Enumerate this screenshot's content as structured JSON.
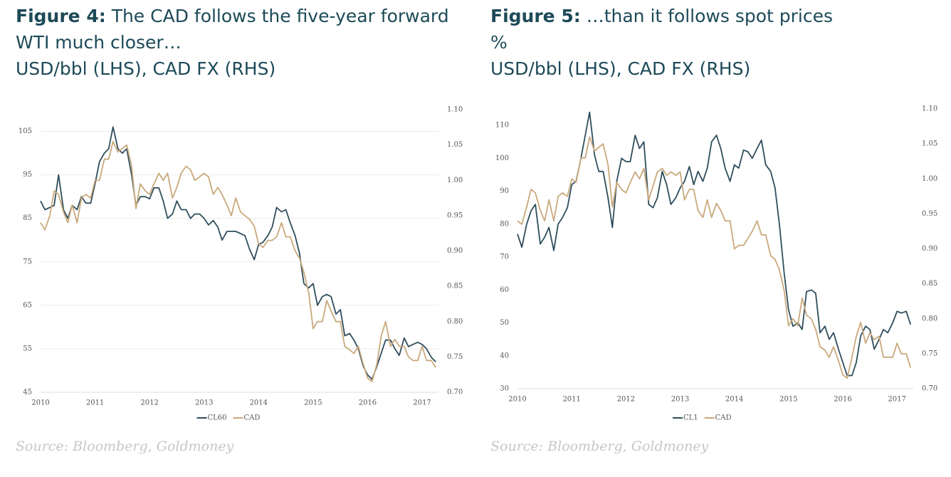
{
  "chart_data": [
    {
      "type": "line",
      "figure_label": "Figure 4:",
      "title": "The CAD follows the five-year forward WTI much closer…",
      "subtitle": "USD/bbl (LHS), CAD FX (RHS)",
      "source": "Source: Bloomberg, Goldmoney",
      "x": [
        2010,
        2010.08,
        2010.17,
        2010.25,
        2010.33,
        2010.42,
        2010.5,
        2010.58,
        2010.67,
        2010.75,
        2010.83,
        2010.92,
        2011,
        2011.08,
        2011.17,
        2011.25,
        2011.33,
        2011.42,
        2011.5,
        2011.58,
        2011.67,
        2011.75,
        2011.83,
        2011.92,
        2012,
        2012.08,
        2012.17,
        2012.25,
        2012.33,
        2012.42,
        2012.5,
        2012.58,
        2012.67,
        2012.75,
        2012.83,
        2012.92,
        2013,
        2013.08,
        2013.17,
        2013.25,
        2013.33,
        2013.42,
        2013.5,
        2013.58,
        2013.67,
        2013.75,
        2013.83,
        2013.92,
        2014,
        2014.08,
        2014.17,
        2014.25,
        2014.33,
        2014.42,
        2014.5,
        2014.58,
        2014.67,
        2014.75,
        2014.83,
        2014.92,
        2015,
        2015.08,
        2015.17,
        2015.25,
        2015.33,
        2015.42,
        2015.5,
        2015.58,
        2015.67,
        2015.75,
        2015.83,
        2015.92,
        2016,
        2016.08,
        2016.17,
        2016.25,
        2016.33,
        2016.42,
        2016.5,
        2016.58,
        2016.67,
        2016.75,
        2016.83,
        2016.92,
        2017,
        2017.08,
        2017.17,
        2017.25
      ],
      "xlim": [
        2010,
        2017.3
      ],
      "xticks": [
        2010,
        2011,
        2012,
        2013,
        2014,
        2015,
        2016,
        2017
      ],
      "ylim": [
        45,
        110
      ],
      "yticks": [
        45,
        55,
        65,
        75,
        85,
        95,
        105
      ],
      "y2lim": [
        0.7,
        1.1
      ],
      "y2ticks": [
        {
          "value": 0.7,
          "label": "0.70"
        },
        0.75,
        {
          "value": 0.8,
          "label": "0.80"
        },
        0.85,
        {
          "value": 0.9,
          "label": "0.90"
        },
        0.95,
        {
          "value": 1.0,
          "label": "1.00"
        },
        1.05,
        {
          "value": 1.1,
          "label": "1.10"
        }
      ],
      "grid": true,
      "series": [
        {
          "name": "CL60",
          "color": "#2f4d5c",
          "values": [
            89,
            87,
            87.5,
            88,
            95,
            87,
            85,
            88,
            87,
            90,
            88.5,
            88.5,
            93,
            98,
            100,
            101,
            106,
            101,
            100,
            101,
            95,
            88,
            90,
            90,
            89.5,
            92,
            92,
            89,
            85,
            86,
            89,
            87,
            87,
            85,
            86,
            86,
            85,
            83.5,
            84.5,
            83,
            80,
            82,
            82,
            82,
            81.5,
            81,
            78,
            75.5,
            79,
            79.5,
            81,
            83,
            87.5,
            86.5,
            87,
            84,
            81,
            77,
            70,
            69,
            70,
            65,
            67,
            67.5,
            67,
            63,
            64,
            58,
            58.5,
            57,
            55,
            51,
            49,
            48,
            51,
            54,
            57,
            57,
            55,
            53.5,
            57.5,
            55.5,
            56,
            56.5,
            56,
            55,
            53,
            52
          ]
        },
        {
          "name": "CAD",
          "color": "#c9a97c",
          "axis": "y2",
          "values": [
            0.94,
            0.93,
            0.95,
            0.985,
            0.98,
            0.955,
            0.94,
            0.965,
            0.94,
            0.975,
            0.98,
            0.975,
            1.0,
            1.0,
            1.03,
            1.03,
            1.055,
            1.04,
            1.045,
            1.05,
            1.02,
            0.96,
            0.995,
            0.985,
            0.98,
            0.995,
            1.01,
            1.0,
            1.01,
            0.975,
            0.99,
            1.01,
            1.02,
            1.015,
            1.0,
            1.005,
            1.01,
            1.005,
            0.98,
            0.99,
            0.98,
            0.965,
            0.95,
            0.975,
            0.955,
            0.95,
            0.945,
            0.935,
            0.91,
            0.905,
            0.915,
            0.915,
            0.92,
            0.94,
            0.92,
            0.92,
            0.9,
            0.89,
            0.87,
            0.84,
            0.79,
            0.8,
            0.8,
            0.83,
            0.815,
            0.8,
            0.8,
            0.765,
            0.76,
            0.755,
            0.765,
            0.74,
            0.72,
            0.715,
            0.74,
            0.78,
            0.8,
            0.765,
            0.775,
            0.765,
            0.765,
            0.75,
            0.745,
            0.745,
            0.765,
            0.745,
            0.745,
            0.735
          ]
        }
      ]
    },
    {
      "type": "line",
      "figure_label": "Figure 5:",
      "title": "…than it follows spot prices",
      "unit": "%",
      "subtitle": "USD/bbl (LHS), CAD FX (RHS)",
      "source": "Source: Bloomberg, Goldmoney",
      "x": [
        2010,
        2010.08,
        2010.17,
        2010.25,
        2010.33,
        2010.42,
        2010.5,
        2010.58,
        2010.67,
        2010.75,
        2010.83,
        2010.92,
        2011,
        2011.08,
        2011.17,
        2011.25,
        2011.33,
        2011.42,
        2011.5,
        2011.58,
        2011.67,
        2011.75,
        2011.83,
        2011.92,
        2012,
        2012.08,
        2012.17,
        2012.25,
        2012.33,
        2012.42,
        2012.5,
        2012.58,
        2012.67,
        2012.75,
        2012.83,
        2012.92,
        2013,
        2013.08,
        2013.17,
        2013.25,
        2013.33,
        2013.42,
        2013.5,
        2013.58,
        2013.67,
        2013.75,
        2013.83,
        2013.92,
        2014,
        2014.08,
        2014.17,
        2014.25,
        2014.33,
        2014.42,
        2014.5,
        2014.58,
        2014.67,
        2014.75,
        2014.83,
        2014.92,
        2015,
        2015.08,
        2015.17,
        2015.25,
        2015.33,
        2015.42,
        2015.5,
        2015.58,
        2015.67,
        2015.75,
        2015.83,
        2015.92,
        2016,
        2016.08,
        2016.17,
        2016.25,
        2016.33,
        2016.42,
        2016.5,
        2016.58,
        2016.67,
        2016.75,
        2016.83,
        2016.92,
        2017,
        2017.08,
        2017.17,
        2017.25
      ],
      "xlim": [
        2010,
        2017.3
      ],
      "xticks": [
        2010,
        2011,
        2012,
        2013,
        2014,
        2015,
        2016,
        2017
      ],
      "ylim": [
        30,
        115
      ],
      "yticks": [
        30,
        40,
        50,
        60,
        70,
        80,
        90,
        100,
        110
      ],
      "y2lim": [
        0.7,
        1.1
      ],
      "y2ticks": [
        {
          "value": 0.7,
          "label": "0.70"
        },
        0.75,
        {
          "value": 0.8,
          "label": "0.80"
        },
        0.85,
        {
          "value": 0.9,
          "label": "0.90"
        },
        0.95,
        {
          "value": 1.0,
          "label": "1.00"
        },
        1.05,
        {
          "value": 1.1,
          "label": "1.10"
        }
      ],
      "grid": false,
      "series": [
        {
          "name": "CL1",
          "color": "#2f4d5c",
          "values": [
            77,
            73,
            80,
            84,
            86,
            74,
            76,
            79,
            72,
            80,
            82,
            85,
            92,
            93,
            100,
            107,
            114,
            101,
            96,
            96,
            88,
            79,
            93,
            100,
            99,
            99,
            107,
            103,
            105,
            86,
            85,
            88,
            96,
            92,
            86,
            88,
            91,
            93,
            97.5,
            92,
            96,
            93,
            97,
            105,
            107,
            103,
            97,
            93,
            98,
            97,
            102.5,
            102,
            100,
            103,
            105.5,
            98,
            96,
            91,
            80,
            65,
            54,
            49,
            50,
            48,
            59.5,
            60,
            59,
            47,
            49,
            45,
            47,
            42,
            38,
            34,
            34,
            38,
            46,
            49,
            48,
            42,
            45,
            48,
            47,
            50,
            53.5,
            53,
            53.5,
            49.5
          ]
        },
        {
          "name": "CAD",
          "color": "#c9a97c",
          "axis": "y2",
          "values": [
            0.94,
            0.935,
            0.96,
            0.985,
            0.98,
            0.955,
            0.94,
            0.97,
            0.94,
            0.975,
            0.98,
            0.975,
            1.0,
            0.995,
            1.03,
            1.03,
            1.06,
            1.04,
            1.045,
            1.05,
            1.02,
            0.96,
            0.995,
            0.985,
            0.98,
            0.995,
            1.01,
            1.0,
            1.015,
            0.97,
            0.99,
            1.01,
            1.015,
            1.005,
            1.01,
            1.005,
            1.01,
            0.97,
            0.985,
            0.985,
            0.955,
            0.945,
            0.97,
            0.945,
            0.965,
            0.955,
            0.94,
            0.94,
            0.9,
            0.905,
            0.905,
            0.915,
            0.925,
            0.94,
            0.92,
            0.92,
            0.89,
            0.885,
            0.87,
            0.84,
            0.79,
            0.8,
            0.79,
            0.83,
            0.805,
            0.8,
            0.785,
            0.76,
            0.755,
            0.745,
            0.76,
            0.74,
            0.72,
            0.715,
            0.745,
            0.775,
            0.795,
            0.765,
            0.78,
            0.77,
            0.775,
            0.745,
            0.745,
            0.745,
            0.765,
            0.75,
            0.75,
            0.73
          ]
        }
      ]
    }
  ]
}
